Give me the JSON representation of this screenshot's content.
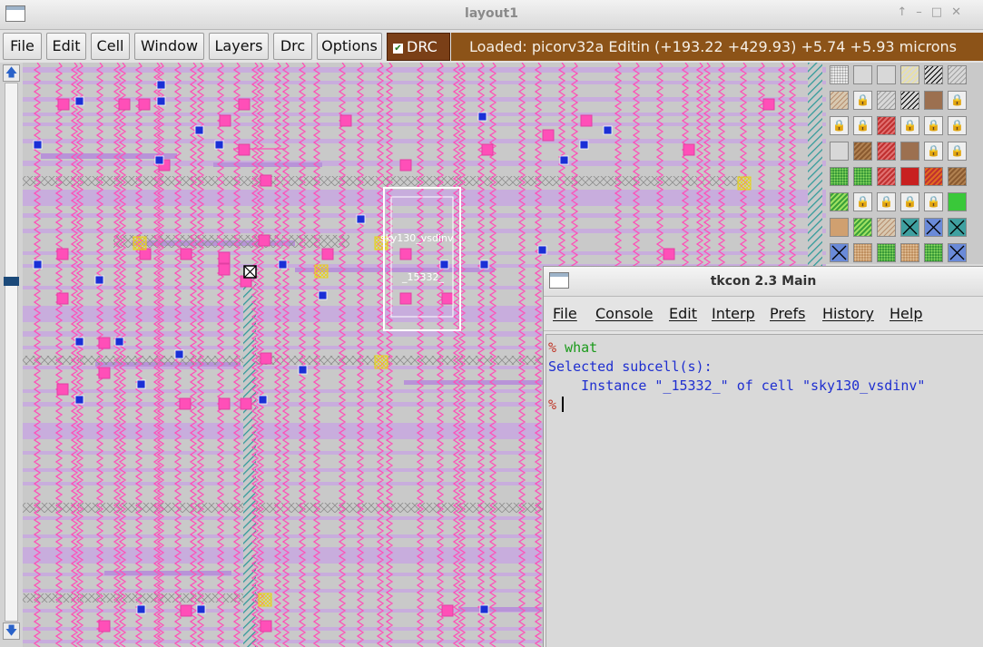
{
  "layout_window": {
    "title": "layout1",
    "controls": [
      "↑",
      "–",
      "□",
      "✕"
    ],
    "menu": [
      "File",
      "Edit",
      "Cell",
      "Window",
      "Layers",
      "Drc",
      "Options"
    ],
    "drc_label": "DRC",
    "drc_checked": true,
    "status_text": "Loaded: picorv32a Editin    (+193.22 +429.93) +5.74 +5.93 microns",
    "scroll_up": "🡅",
    "scroll_down": "🡇",
    "cell_label": "sky130_vsdinv",
    "instance_label": "_15332_"
  },
  "colors": {
    "status_bar": "#8c5318",
    "drc_button": "#7a3f17",
    "metal_lines": "#ff4fb8",
    "metal_straps": "#c8a8e0",
    "via_blue": "#1a2fd6",
    "selection_box": "#ffffff",
    "prompt": "#c0392b",
    "command": "#1a9a1a",
    "output": "#1f2fd0"
  },
  "palette": [
    [
      "stipple",
      "gray",
      "gray",
      "yellow-hatch",
      "black-hatch",
      "gray-hatch"
    ],
    [
      "tan-hatch",
      "lock",
      "gray-hatch",
      "black-hatch",
      "brown",
      "lock"
    ],
    [
      "lock",
      "lock",
      "red-hatch",
      "lock",
      "lock",
      "lock"
    ],
    [
      "gray",
      "brown-hatch",
      "red-hatch",
      "brown",
      "lock",
      "lock"
    ],
    [
      "green-dots",
      "green-dots",
      "red-hatch",
      "red",
      "orange-hatch",
      "brown-hatch"
    ],
    [
      "green-hatch",
      "lock",
      "lock",
      "lock",
      "lock",
      "green"
    ],
    [
      "tan",
      "green-hatch",
      "tan-hatch",
      "x-teal",
      "x-blue",
      "x-teal"
    ],
    [
      "x-blue",
      "tan-dots",
      "green-dots",
      "tan-dots",
      "green-dots",
      "x-blue"
    ]
  ],
  "tkcon": {
    "title": "tkcon 2.3 Main",
    "menu": [
      "File",
      "Console",
      "Edit",
      "Interp",
      "Prefs",
      "History",
      "Help"
    ],
    "lines": [
      {
        "prompt": "%",
        "text": " what"
      },
      {
        "text": "Selected subcell(s):"
      },
      {
        "text": "    Instance \"_15332_\" of cell \"sky130_vsdinv\""
      },
      {
        "prompt": "%",
        "text": ""
      }
    ]
  }
}
